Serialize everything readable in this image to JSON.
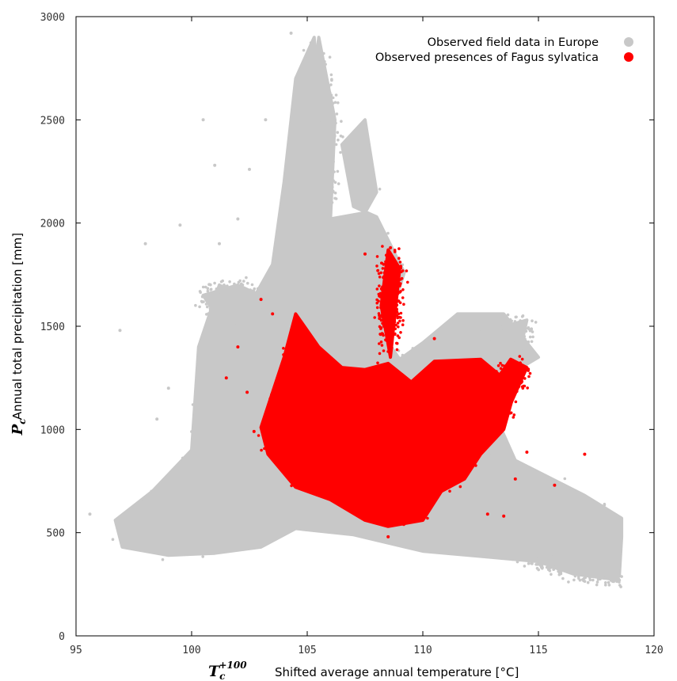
{
  "chart_data": {
    "type": "scatter",
    "xlabel": "Shifted average annual temperature [°C]",
    "xlabel_symbol": "T",
    "xlabel_symbol_sub": "c",
    "xlabel_symbol_sup": "+100",
    "ylabel": "Annual total precipitation [mm]",
    "ylabel_symbol": "P",
    "ylabel_symbol_sub": "c",
    "xlim": [
      95,
      120
    ],
    "ylim": [
      0,
      3000
    ],
    "xticks": [
      "95",
      "100",
      "105",
      "110",
      "115",
      "120"
    ],
    "yticks": [
      "0",
      "500",
      "1000",
      "1500",
      "2000",
      "2500",
      "3000"
    ],
    "legend_position": "top-right",
    "grid": false,
    "series": [
      {
        "name": "Observed field data in Europe",
        "color": "#c8c8c8",
        "regions": [
          [
            [
              96.7,
              560
            ],
            [
              97,
              430
            ],
            [
              99,
              390
            ],
            [
              101,
              400
            ],
            [
              103,
              430
            ],
            [
              104.5,
              520
            ],
            [
              107,
              490
            ],
            [
              110,
              410
            ],
            [
              113,
              380
            ],
            [
              116,
              350
            ],
            [
              118.5,
              290
            ],
            [
              118.6,
              480
            ],
            [
              118.6,
              570
            ],
            [
              117,
              680
            ],
            [
              114,
              850
            ],
            [
              113,
              1100
            ],
            [
              113.5,
              1250
            ],
            [
              115,
              1350
            ],
            [
              113.5,
              1560
            ],
            [
              111.5,
              1560
            ],
            [
              110,
              1420
            ],
            [
              109,
              1340
            ],
            [
              108.3,
              1450
            ],
            [
              109.2,
              1760
            ],
            [
              108,
              2030
            ],
            [
              107,
              2080
            ],
            [
              106.5,
              2380
            ],
            [
              107.5,
              2500
            ],
            [
              108,
              2150
            ],
            [
              107.5,
              2050
            ],
            [
              105,
              2000
            ],
            [
              105.6,
              2400
            ],
            [
              105.3,
              2900
            ],
            [
              104.5,
              2700
            ],
            [
              104,
              2200
            ],
            [
              103.5,
              1800
            ],
            [
              102.5,
              1600
            ],
            [
              101.2,
              1700
            ],
            [
              100.3,
              1400
            ],
            [
              100,
              900
            ],
            [
              98.3,
              700
            ]
          ],
          [
            [
              100.5,
              1650
            ],
            [
              102,
              1700
            ],
            [
              103.5,
              1620
            ],
            [
              103,
              1500
            ],
            [
              101.5,
              1480
            ]
          ],
          [
            [
              112,
              1450
            ],
            [
              114.5,
              1530
            ],
            [
              114.2,
              1380
            ],
            [
              112.5,
              1350
            ]
          ],
          [
            [
              104.5,
              2000
            ],
            [
              105.5,
              2900
            ],
            [
              106.2,
              2500
            ],
            [
              106,
              2000
            ]
          ],
          [
            [
              114,
              400
            ],
            [
              116.5,
              300
            ],
            [
              118.5,
              270
            ],
            [
              118,
              340
            ],
            [
              115.5,
              380
            ]
          ]
        ],
        "scatter": [
          [
            95.6,
            590
          ],
          [
            96.9,
            1480
          ],
          [
            99,
            1200
          ],
          [
            98,
            1900
          ],
          [
            101,
            2280
          ],
          [
            102.5,
            2260
          ],
          [
            101.2,
            1900
          ],
          [
            103.2,
            2500
          ],
          [
            104.3,
            2920
          ],
          [
            100.5,
            2500
          ],
          [
            102,
            2020
          ],
          [
            99.5,
            1990
          ],
          [
            98.5,
            1050
          ]
        ]
      },
      {
        "name": "Observed presences of Fagus sylvatica",
        "color": "#ff0000",
        "regions": [
          [
            [
              103,
              1010
            ],
            [
              104,
              1350
            ],
            [
              104.5,
              1560
            ],
            [
              105.5,
              1400
            ],
            [
              106.5,
              1300
            ],
            [
              107.5,
              1290
            ],
            [
              108.5,
              1320
            ],
            [
              109.5,
              1230
            ],
            [
              110.5,
              1330
            ],
            [
              112.5,
              1340
            ],
            [
              114,
              1200
            ],
            [
              113.5,
              1000
            ],
            [
              112.5,
              880
            ],
            [
              111.8,
              760
            ],
            [
              110.8,
              700
            ],
            [
              110,
              560
            ],
            [
              108.5,
              530
            ],
            [
              107.5,
              560
            ],
            [
              106,
              660
            ],
            [
              104.5,
              720
            ],
            [
              103.3,
              880
            ]
          ],
          [
            [
              108.6,
              1350
            ],
            [
              109,
              1780
            ],
            [
              108.5,
              1870
            ],
            [
              108.2,
              1600
            ]
          ],
          [
            [
              112,
              1050
            ],
            [
              113.8,
              1340
            ],
            [
              114.5,
              1300
            ],
            [
              113.5,
              1050
            ]
          ]
        ],
        "scatter": [
          [
            101.5,
            1250
          ],
          [
            102,
            1400
          ],
          [
            103,
            1630
          ],
          [
            102.4,
            1180
          ],
          [
            114.5,
            890
          ],
          [
            115.7,
            730
          ],
          [
            117,
            880
          ],
          [
            113.5,
            580
          ],
          [
            108.5,
            480
          ],
          [
            112.8,
            590
          ],
          [
            110.5,
            1440
          ],
          [
            107.5,
            1850
          ],
          [
            108.6,
            1880
          ],
          [
            102.7,
            990
          ],
          [
            103.5,
            1560
          ],
          [
            114,
            760
          ]
        ]
      }
    ]
  }
}
